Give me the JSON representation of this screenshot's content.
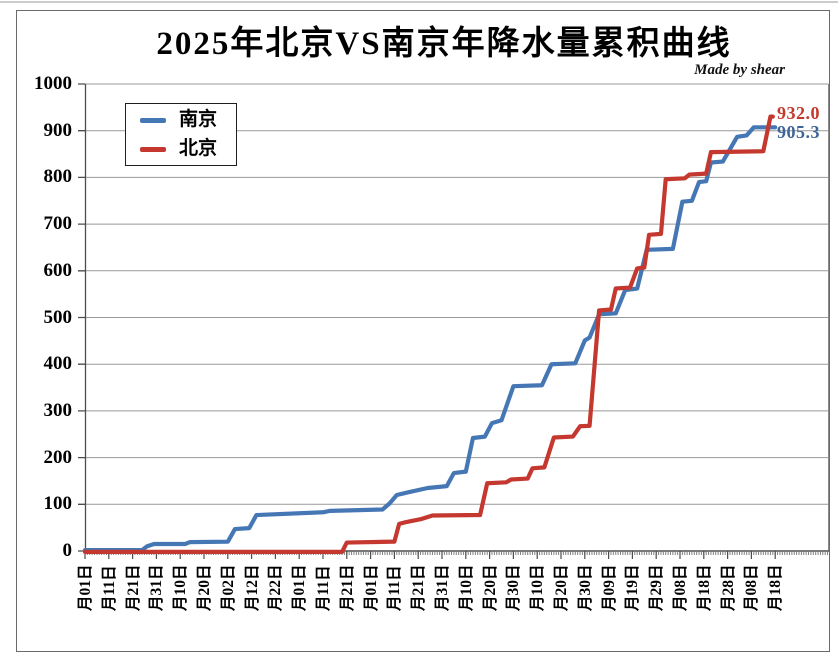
{
  "chart": {
    "title": "2025年北京VS南京年降水量累积曲线",
    "credit": "Made by shear",
    "legend": [
      {
        "label": "南京",
        "color": "#4677b5"
      },
      {
        "label": "北京",
        "color": "#c4382f"
      }
    ],
    "end_labels": [
      {
        "text": "932.0",
        "color": "#c3392c"
      },
      {
        "text": "905.3",
        "color": "#3f6497"
      }
    ],
    "colors": {
      "nanjing_line": "#4677b5",
      "beijing_line": "#c4382f",
      "gridline": "#999999",
      "axis": "#4d4d4d",
      "border": "#6a6a6a"
    }
  },
  "chart_data": {
    "type": "line",
    "title": "2025年北京VS南京年降水量累积曲线",
    "subtitle": "Made by shear",
    "xlabel": "",
    "ylabel": "",
    "ylim": [
      0,
      1000
    ],
    "grid": true,
    "legend_position": "top-left-inside",
    "x_unit": "day index from first tick (10-day tick spacing), axis extends ~312 days",
    "x_axis_days_max": 312,
    "y_ticks": [
      "0",
      "100",
      "200",
      "300",
      "400",
      "500",
      "600",
      "700",
      "800",
      "900",
      "1000"
    ],
    "x_tick_labels": [
      "月01日",
      "月11日",
      "月21日",
      "月31日",
      "月10日",
      "月20日",
      "月02日",
      "月12日",
      "月22日",
      "月01日",
      "月11日",
      "月21日",
      "月01日",
      "月11日",
      "月21日",
      "月31日",
      "月10日",
      "月20日",
      "月30日",
      "月10日",
      "月20日",
      "月30日",
      "月09日",
      "月19日",
      "月29日",
      "月08日",
      "月18日",
      "月28日",
      "月08日",
      "月18日"
    ],
    "series": [
      {
        "name": "南京",
        "color": "#4677b5",
        "final_value": 905.3,
        "final_label": "905.3",
        "points": [
          [
            0,
            0
          ],
          [
            24,
            0
          ],
          [
            26,
            8
          ],
          [
            29,
            13
          ],
          [
            42,
            13
          ],
          [
            44,
            17
          ],
          [
            60,
            18
          ],
          [
            63,
            45
          ],
          [
            69,
            47
          ],
          [
            72,
            75
          ],
          [
            100,
            81
          ],
          [
            103,
            84
          ],
          [
            125,
            87
          ],
          [
            128,
            100
          ],
          [
            131,
            118
          ],
          [
            136,
            124
          ],
          [
            144,
            133
          ],
          [
            152,
            137
          ],
          [
            155,
            165
          ],
          [
            160,
            168
          ],
          [
            163,
            240
          ],
          [
            168,
            243
          ],
          [
            171,
            272
          ],
          [
            175,
            278
          ],
          [
            180,
            351
          ],
          [
            192,
            353
          ],
          [
            196,
            398
          ],
          [
            206,
            400
          ],
          [
            210,
            449
          ],
          [
            212,
            455
          ],
          [
            216,
            505
          ],
          [
            223,
            507
          ],
          [
            227,
            557
          ],
          [
            232,
            560
          ],
          [
            236,
            643
          ],
          [
            247,
            645
          ],
          [
            251,
            746
          ],
          [
            255,
            748
          ],
          [
            258,
            788
          ],
          [
            261,
            790
          ],
          [
            263,
            830
          ],
          [
            268,
            832
          ],
          [
            274,
            885
          ],
          [
            278,
            888
          ],
          [
            281,
            905.3
          ],
          [
            290,
            905.3
          ]
        ]
      },
      {
        "name": "北京",
        "color": "#c4382f",
        "final_value": 932.0,
        "final_label": "932.0",
        "points": [
          [
            0,
            0
          ],
          [
            108,
            0
          ],
          [
            110,
            20
          ],
          [
            130,
            22
          ],
          [
            132,
            60
          ],
          [
            135,
            64
          ],
          [
            141,
            70
          ],
          [
            146,
            78
          ],
          [
            166,
            79
          ],
          [
            169,
            147
          ],
          [
            177,
            149
          ],
          [
            179,
            155
          ],
          [
            186,
            157
          ],
          [
            188,
            179
          ],
          [
            193,
            181
          ],
          [
            197,
            245
          ],
          [
            205,
            247
          ],
          [
            208,
            269
          ],
          [
            212,
            270
          ],
          [
            216,
            517
          ],
          [
            221,
            519
          ],
          [
            223,
            564
          ],
          [
            229,
            566
          ],
          [
            232,
            607
          ],
          [
            235,
            609
          ],
          [
            237,
            679
          ],
          [
            242,
            681
          ],
          [
            244,
            798
          ],
          [
            252,
            800
          ],
          [
            254,
            808
          ],
          [
            261,
            810
          ],
          [
            263,
            856
          ],
          [
            285,
            858
          ],
          [
            288,
            932
          ],
          [
            289,
            932
          ]
        ]
      }
    ]
  }
}
